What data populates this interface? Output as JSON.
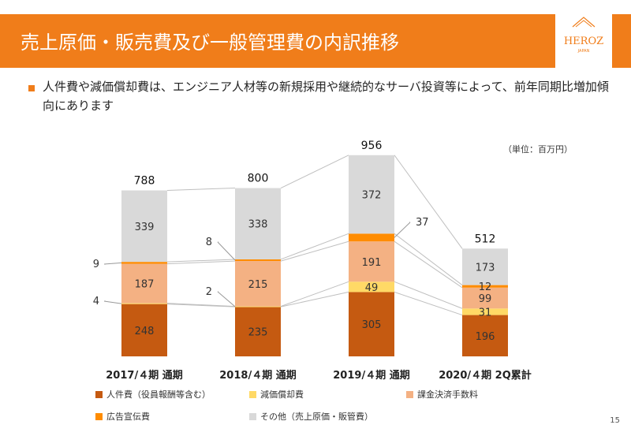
{
  "header": {
    "title": "売上原価・販売費及び一般管理費の内訳推移",
    "logo_text": "HEROZ",
    "logo_subtext": "JAPAN"
  },
  "bullet_text": "人件費や減価償却費は、エンジニア人材等の新規採用や継続的なサーバ投資等によって、前年同期比増加傾向にあります",
  "unit_label": "（単位：百万円）",
  "page_number": "15",
  "chart_data": {
    "type": "bar",
    "stacked": true,
    "categories": [
      "2017/４期 通期",
      "2018/４期 通期",
      "2019/４期 通期",
      "2020/４期 2Q累計"
    ],
    "totals": [
      788,
      800,
      956,
      512
    ],
    "series": [
      {
        "name": "人件費（役員報酬等含む）",
        "color": "#c55a11",
        "values": [
          248,
          235,
          305,
          196
        ],
        "labels": [
          "248",
          "235",
          "305",
          "196"
        ]
      },
      {
        "name": "減価償却費",
        "color": "#ffd966",
        "values": [
          4,
          2,
          49,
          31
        ],
        "labels": [
          "4",
          "2",
          "49",
          "31"
        ]
      },
      {
        "name": "課金決済手数料",
        "color": "#f4b183",
        "values": [
          187,
          215,
          191,
          99
        ],
        "labels": [
          "187",
          "215",
          "191",
          "99"
        ]
      },
      {
        "name": "広告宣伝費",
        "color": "#ff8c00",
        "values": [
          9,
          8,
          37,
          12
        ],
        "labels": [
          "9",
          "8",
          "37",
          "12"
        ]
      },
      {
        "name": "その他（売上原価・販管費）",
        "color": "#d9d9d9",
        "values": [
          339,
          338,
          372,
          173
        ],
        "labels": [
          "339",
          "338",
          "372",
          "173"
        ]
      }
    ]
  }
}
